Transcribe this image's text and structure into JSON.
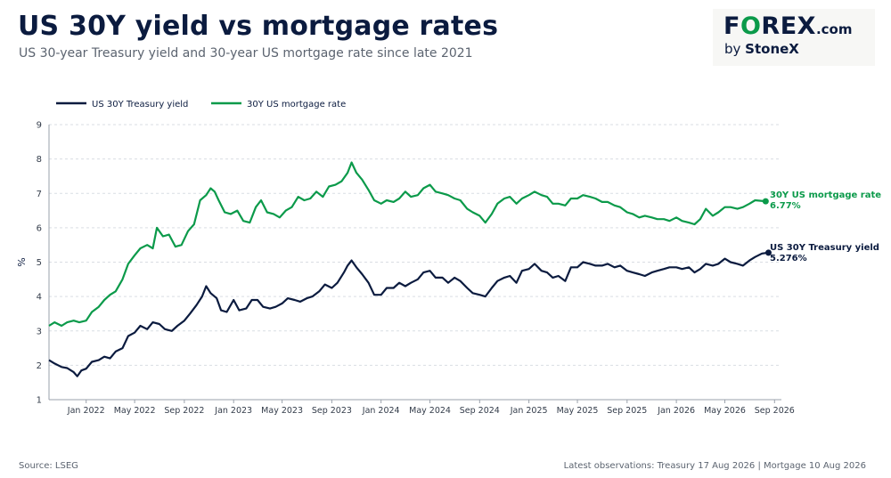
{
  "header": {
    "title": "US 30Y yield vs mortgage rates",
    "subtitle": "US 30-year Treasury yield and 30-year US mortgage rate since late 2021"
  },
  "logo": {
    "brand": "FOREX.com",
    "by": "by StoneX"
  },
  "footer": {
    "source": "Source: LSEG",
    "note": "Latest observations: Treasury 17 Aug 2026 | Mortgage 10 Aug 2026"
  },
  "chart_data": {
    "type": "line",
    "ylabel": "%",
    "ylim": [
      1,
      9
    ],
    "yticks": [
      1,
      2,
      3,
      4,
      5,
      6,
      7,
      8,
      9
    ],
    "xlim": [
      "2021-10-01",
      "2026-09-18"
    ],
    "xticks": [
      {
        "date": "2022-01-01",
        "label": "Jan 2022"
      },
      {
        "date": "2022-05-01",
        "label": "May 2022"
      },
      {
        "date": "2022-09-01",
        "label": "Sep 2022"
      },
      {
        "date": "2023-01-01",
        "label": "Jan 2023"
      },
      {
        "date": "2023-05-01",
        "label": "May 2023"
      },
      {
        "date": "2023-09-01",
        "label": "Sep 2023"
      },
      {
        "date": "2024-01-01",
        "label": "Jan 2024"
      },
      {
        "date": "2024-05-01",
        "label": "May 2024"
      },
      {
        "date": "2024-09-01",
        "label": "Sep 2024"
      },
      {
        "date": "2025-01-01",
        "label": "Jan 2025"
      },
      {
        "date": "2025-05-01",
        "label": "May 2025"
      },
      {
        "date": "2025-09-01",
        "label": "Sep 2025"
      },
      {
        "date": "2026-01-01",
        "label": "Jan 2026"
      },
      {
        "date": "2026-05-01",
        "label": "May 2026"
      },
      {
        "date": "2026-09-01",
        "label": "Sep 2026"
      }
    ],
    "grid": "horizontal dashed",
    "legend_position": "top-left",
    "series": [
      {
        "name": "US 30Y Treasury yield",
        "color": "#0b1b3f",
        "end_label": "US 30Y Treasury yield",
        "end_value": "5.276%",
        "points": [
          [
            "2021-10-01",
            2.15
          ],
          [
            "2021-10-15",
            2.05
          ],
          [
            "2021-11-01",
            1.95
          ],
          [
            "2021-11-15",
            1.92
          ],
          [
            "2021-12-01",
            1.8
          ],
          [
            "2021-12-10",
            1.68
          ],
          [
            "2021-12-20",
            1.85
          ],
          [
            "2022-01-01",
            1.9
          ],
          [
            "2022-01-15",
            2.1
          ],
          [
            "2022-02-01",
            2.15
          ],
          [
            "2022-02-15",
            2.25
          ],
          [
            "2022-03-01",
            2.2
          ],
          [
            "2022-03-15",
            2.4
          ],
          [
            "2022-04-01",
            2.5
          ],
          [
            "2022-04-15",
            2.85
          ],
          [
            "2022-05-01",
            2.95
          ],
          [
            "2022-05-15",
            3.15
          ],
          [
            "2022-06-01",
            3.05
          ],
          [
            "2022-06-15",
            3.25
          ],
          [
            "2022-07-01",
            3.2
          ],
          [
            "2022-07-15",
            3.05
          ],
          [
            "2022-08-01",
            3.0
          ],
          [
            "2022-08-15",
            3.15
          ],
          [
            "2022-09-01",
            3.3
          ],
          [
            "2022-09-15",
            3.5
          ],
          [
            "2022-10-01",
            3.75
          ],
          [
            "2022-10-15",
            4.0
          ],
          [
            "2022-10-25",
            4.3
          ],
          [
            "2022-11-05",
            4.1
          ],
          [
            "2022-11-20",
            3.95
          ],
          [
            "2022-12-01",
            3.6
          ],
          [
            "2022-12-15",
            3.55
          ],
          [
            "2023-01-01",
            3.9
          ],
          [
            "2023-01-15",
            3.6
          ],
          [
            "2023-02-01",
            3.65
          ],
          [
            "2023-02-15",
            3.9
          ],
          [
            "2023-03-01",
            3.9
          ],
          [
            "2023-03-15",
            3.7
          ],
          [
            "2023-04-01",
            3.65
          ],
          [
            "2023-04-15",
            3.7
          ],
          [
            "2023-05-01",
            3.8
          ],
          [
            "2023-05-15",
            3.95
          ],
          [
            "2023-06-01",
            3.9
          ],
          [
            "2023-06-15",
            3.85
          ],
          [
            "2023-07-01",
            3.95
          ],
          [
            "2023-07-15",
            4.0
          ],
          [
            "2023-08-01",
            4.15
          ],
          [
            "2023-08-15",
            4.35
          ],
          [
            "2023-09-01",
            4.25
          ],
          [
            "2023-09-15",
            4.4
          ],
          [
            "2023-10-01",
            4.7
          ],
          [
            "2023-10-10",
            4.9
          ],
          [
            "2023-10-20",
            5.05
          ],
          [
            "2023-11-01",
            4.85
          ],
          [
            "2023-11-15",
            4.65
          ],
          [
            "2023-12-01",
            4.4
          ],
          [
            "2023-12-15",
            4.05
          ],
          [
            "2024-01-01",
            4.05
          ],
          [
            "2024-01-15",
            4.25
          ],
          [
            "2024-02-01",
            4.25
          ],
          [
            "2024-02-15",
            4.4
          ],
          [
            "2024-03-01",
            4.3
          ],
          [
            "2024-03-15",
            4.4
          ],
          [
            "2024-04-01",
            4.5
          ],
          [
            "2024-04-15",
            4.7
          ],
          [
            "2024-05-01",
            4.75
          ],
          [
            "2024-05-15",
            4.55
          ],
          [
            "2024-06-01",
            4.55
          ],
          [
            "2024-06-15",
            4.4
          ],
          [
            "2024-07-01",
            4.55
          ],
          [
            "2024-07-15",
            4.45
          ],
          [
            "2024-08-01",
            4.25
          ],
          [
            "2024-08-15",
            4.1
          ],
          [
            "2024-09-01",
            4.05
          ],
          [
            "2024-09-15",
            4.0
          ],
          [
            "2024-10-01",
            4.25
          ],
          [
            "2024-10-15",
            4.45
          ],
          [
            "2024-11-01",
            4.55
          ],
          [
            "2024-11-15",
            4.6
          ],
          [
            "2024-12-01",
            4.4
          ],
          [
            "2024-12-15",
            4.75
          ],
          [
            "2025-01-01",
            4.8
          ],
          [
            "2025-01-15",
            4.95
          ],
          [
            "2025-02-01",
            4.75
          ],
          [
            "2025-02-15",
            4.7
          ],
          [
            "2025-03-01",
            4.55
          ],
          [
            "2025-03-15",
            4.6
          ],
          [
            "2025-04-01",
            4.45
          ],
          [
            "2025-04-15",
            4.85
          ],
          [
            "2025-05-01",
            4.85
          ],
          [
            "2025-05-15",
            5.0
          ],
          [
            "2025-06-01",
            4.95
          ],
          [
            "2025-06-15",
            4.9
          ],
          [
            "2025-07-01",
            4.9
          ],
          [
            "2025-07-15",
            4.95
          ],
          [
            "2025-08-01",
            4.85
          ],
          [
            "2025-08-15",
            4.9
          ],
          [
            "2025-09-01",
            4.75
          ],
          [
            "2025-09-15",
            4.7
          ],
          [
            "2025-10-01",
            4.65
          ],
          [
            "2025-10-15",
            4.6
          ],
          [
            "2025-11-01",
            4.7
          ],
          [
            "2025-11-15",
            4.75
          ],
          [
            "2025-12-01",
            4.8
          ],
          [
            "2025-12-15",
            4.85
          ],
          [
            "2026-01-01",
            4.85
          ],
          [
            "2026-01-15",
            4.8
          ],
          [
            "2026-02-01",
            4.85
          ],
          [
            "2026-02-15",
            4.7
          ],
          [
            "2026-03-01",
            4.8
          ],
          [
            "2026-03-15",
            4.95
          ],
          [
            "2026-04-01",
            4.9
          ],
          [
            "2026-04-15",
            4.95
          ],
          [
            "2026-05-01",
            5.1
          ],
          [
            "2026-05-15",
            5.0
          ],
          [
            "2026-06-01",
            4.95
          ],
          [
            "2026-06-15",
            4.9
          ],
          [
            "2026-07-01",
            5.05
          ],
          [
            "2026-07-15",
            5.15
          ],
          [
            "2026-08-01",
            5.25
          ],
          [
            "2026-08-17",
            5.276
          ]
        ]
      },
      {
        "name": "30Y US mortgage rate",
        "color": "#0b9a4a",
        "end_label": "30Y US mortgage rate",
        "end_value": "6.77%",
        "points": [
          [
            "2021-10-01",
            3.15
          ],
          [
            "2021-10-15",
            3.25
          ],
          [
            "2021-11-01",
            3.15
          ],
          [
            "2021-11-15",
            3.25
          ],
          [
            "2021-12-01",
            3.3
          ],
          [
            "2021-12-15",
            3.25
          ],
          [
            "2022-01-01",
            3.3
          ],
          [
            "2022-01-15",
            3.55
          ],
          [
            "2022-02-01",
            3.7
          ],
          [
            "2022-02-15",
            3.9
          ],
          [
            "2022-03-01",
            4.05
          ],
          [
            "2022-03-15",
            4.15
          ],
          [
            "2022-04-01",
            4.5
          ],
          [
            "2022-04-15",
            4.95
          ],
          [
            "2022-05-01",
            5.2
          ],
          [
            "2022-05-15",
            5.4
          ],
          [
            "2022-06-01",
            5.5
          ],
          [
            "2022-06-15",
            5.4
          ],
          [
            "2022-06-25",
            6.0
          ],
          [
            "2022-07-10",
            5.75
          ],
          [
            "2022-07-25",
            5.8
          ],
          [
            "2022-08-10",
            5.45
          ],
          [
            "2022-08-25",
            5.5
          ],
          [
            "2022-09-10",
            5.9
          ],
          [
            "2022-09-25",
            6.1
          ],
          [
            "2022-10-10",
            6.8
          ],
          [
            "2022-10-25",
            6.95
          ],
          [
            "2022-11-05",
            7.15
          ],
          [
            "2022-11-15",
            7.05
          ],
          [
            "2022-11-25",
            6.8
          ],
          [
            "2022-12-10",
            6.45
          ],
          [
            "2022-12-25",
            6.4
          ],
          [
            "2023-01-10",
            6.5
          ],
          [
            "2023-01-25",
            6.2
          ],
          [
            "2023-02-10",
            6.15
          ],
          [
            "2023-02-25",
            6.6
          ],
          [
            "2023-03-10",
            6.8
          ],
          [
            "2023-03-25",
            6.45
          ],
          [
            "2023-04-10",
            6.4
          ],
          [
            "2023-04-25",
            6.3
          ],
          [
            "2023-05-10",
            6.5
          ],
          [
            "2023-05-25",
            6.6
          ],
          [
            "2023-06-10",
            6.9
          ],
          [
            "2023-06-25",
            6.8
          ],
          [
            "2023-07-10",
            6.85
          ],
          [
            "2023-07-25",
            7.05
          ],
          [
            "2023-08-10",
            6.9
          ],
          [
            "2023-08-25",
            7.2
          ],
          [
            "2023-09-10",
            7.25
          ],
          [
            "2023-09-25",
            7.35
          ],
          [
            "2023-10-10",
            7.6
          ],
          [
            "2023-10-20",
            7.9
          ],
          [
            "2023-11-01",
            7.6
          ],
          [
            "2023-11-15",
            7.4
          ],
          [
            "2023-12-01",
            7.1
          ],
          [
            "2023-12-15",
            6.8
          ],
          [
            "2024-01-01",
            6.7
          ],
          [
            "2024-01-15",
            6.8
          ],
          [
            "2024-02-01",
            6.75
          ],
          [
            "2024-02-15",
            6.85
          ],
          [
            "2024-03-01",
            7.05
          ],
          [
            "2024-03-15",
            6.9
          ],
          [
            "2024-04-01",
            6.95
          ],
          [
            "2024-04-15",
            7.15
          ],
          [
            "2024-05-01",
            7.25
          ],
          [
            "2024-05-15",
            7.05
          ],
          [
            "2024-06-01",
            7.0
          ],
          [
            "2024-06-15",
            6.95
          ],
          [
            "2024-07-01",
            6.85
          ],
          [
            "2024-07-15",
            6.8
          ],
          [
            "2024-08-01",
            6.55
          ],
          [
            "2024-08-15",
            6.45
          ],
          [
            "2024-09-01",
            6.35
          ],
          [
            "2024-09-15",
            6.15
          ],
          [
            "2024-10-01",
            6.4
          ],
          [
            "2024-10-15",
            6.7
          ],
          [
            "2024-11-01",
            6.85
          ],
          [
            "2024-11-15",
            6.9
          ],
          [
            "2024-12-01",
            6.7
          ],
          [
            "2024-12-15",
            6.85
          ],
          [
            "2025-01-01",
            6.95
          ],
          [
            "2025-01-15",
            7.05
          ],
          [
            "2025-02-01",
            6.95
          ],
          [
            "2025-02-15",
            6.9
          ],
          [
            "2025-03-01",
            6.7
          ],
          [
            "2025-03-15",
            6.7
          ],
          [
            "2025-04-01",
            6.65
          ],
          [
            "2025-04-15",
            6.85
          ],
          [
            "2025-05-01",
            6.85
          ],
          [
            "2025-05-15",
            6.95
          ],
          [
            "2025-06-01",
            6.9
          ],
          [
            "2025-06-15",
            6.85
          ],
          [
            "2025-07-01",
            6.75
          ],
          [
            "2025-07-15",
            6.75
          ],
          [
            "2025-08-01",
            6.65
          ],
          [
            "2025-08-15",
            6.6
          ],
          [
            "2025-09-01",
            6.45
          ],
          [
            "2025-09-15",
            6.4
          ],
          [
            "2025-10-01",
            6.3
          ],
          [
            "2025-10-15",
            6.35
          ],
          [
            "2025-11-01",
            6.3
          ],
          [
            "2025-11-15",
            6.25
          ],
          [
            "2025-12-01",
            6.25
          ],
          [
            "2025-12-15",
            6.2
          ],
          [
            "2026-01-01",
            6.3
          ],
          [
            "2026-01-15",
            6.2
          ],
          [
            "2026-02-01",
            6.15
          ],
          [
            "2026-02-15",
            6.1
          ],
          [
            "2026-03-01",
            6.25
          ],
          [
            "2026-03-15",
            6.55
          ],
          [
            "2026-04-01",
            6.35
          ],
          [
            "2026-04-15",
            6.45
          ],
          [
            "2026-05-01",
            6.6
          ],
          [
            "2026-05-15",
            6.6
          ],
          [
            "2026-06-01",
            6.55
          ],
          [
            "2026-06-15",
            6.6
          ],
          [
            "2026-07-01",
            6.7
          ],
          [
            "2026-07-15",
            6.8
          ],
          [
            "2026-08-10",
            6.77
          ]
        ]
      }
    ]
  }
}
